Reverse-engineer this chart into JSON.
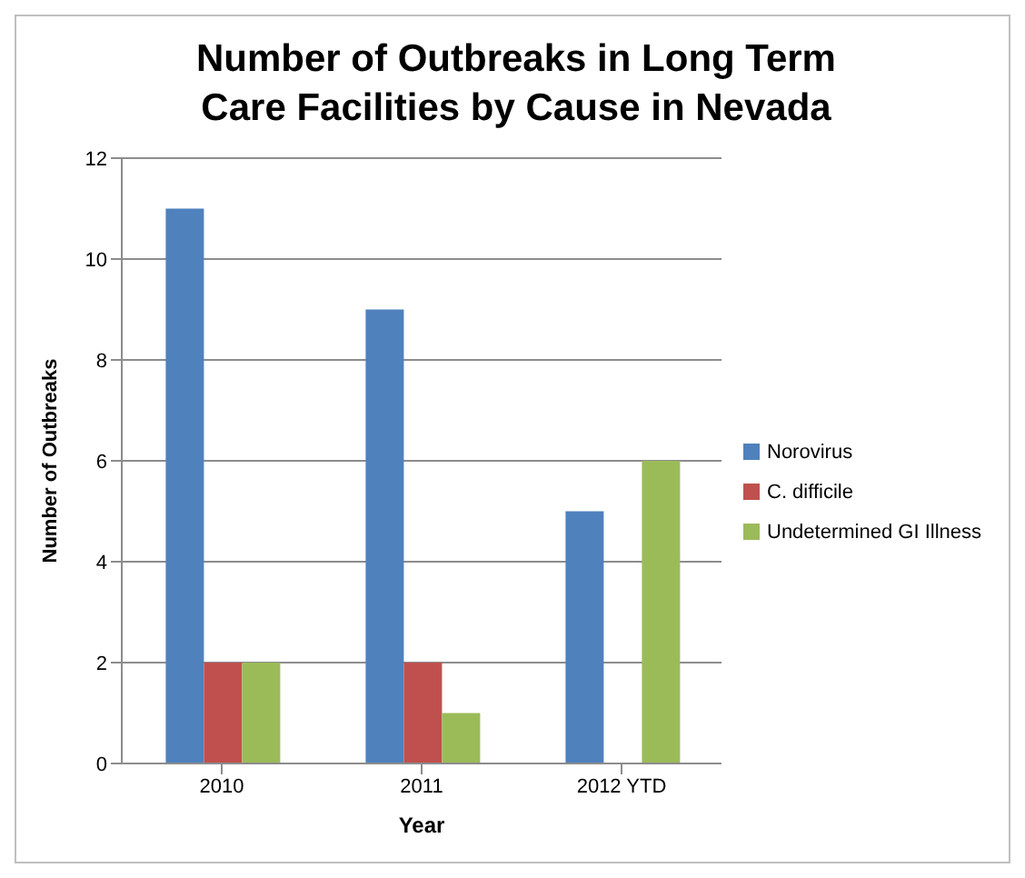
{
  "chart_data": {
    "type": "bar",
    "title": "Number of Outbreaks in Long Term Care Facilities by Cause in Nevada",
    "xlabel": "Year",
    "ylabel": "Number of Outbreaks",
    "categories": [
      "2010",
      "2011",
      "2012 YTD"
    ],
    "series": [
      {
        "name": "Norovirus",
        "color": "#4f81bd",
        "values": [
          11,
          9,
          5
        ]
      },
      {
        "name": "C. difficile",
        "color": "#c0504d",
        "values": [
          2,
          2,
          null
        ]
      },
      {
        "name": "Undetermined GI Illness",
        "color": "#9bbb59",
        "values": [
          2,
          1,
          6
        ]
      }
    ],
    "ylim": [
      0,
      12
    ],
    "yticks": [
      0,
      2,
      4,
      6,
      8,
      10,
      12
    ],
    "grid": "y",
    "legend": "right"
  }
}
